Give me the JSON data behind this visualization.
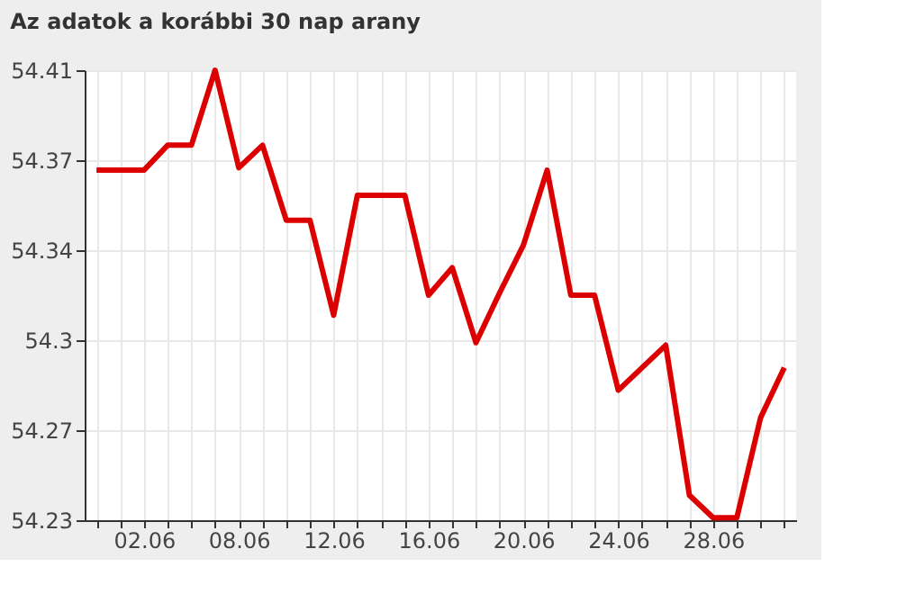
{
  "chart_data": {
    "type": "line",
    "title": "Az adatok a korábbi 30 nap arany",
    "categories": [
      null,
      null,
      "02.06",
      null,
      null,
      null,
      "08.06",
      null,
      null,
      null,
      "12.06",
      null,
      null,
      null,
      "16.06",
      null,
      null,
      null,
      "20.06",
      null,
      null,
      null,
      "24.06",
      null,
      null,
      null,
      "28.06",
      null,
      null,
      null
    ],
    "series": [
      {
        "color": "#dd0000",
        "values": [
          54.37,
          54.37,
          54.37,
          54.38,
          54.38,
          54.41,
          54.371,
          54.38,
          54.35,
          54.35,
          54.312,
          54.36,
          54.36,
          54.36,
          54.32,
          54.331,
          54.301,
          54.321,
          54.34,
          54.37,
          54.32,
          54.32,
          54.282,
          54.291,
          54.3,
          54.24,
          54.231,
          54.231,
          54.271,
          54.291
        ]
      }
    ],
    "ylim": [
      54.23,
      54.41
    ],
    "yticks": [
      54.23,
      {
        "value": 54.266,
        "label": "54.27"
      },
      {
        "value": 54.302,
        "label": "54.3"
      },
      {
        "value": 54.338,
        "label": "54.34"
      },
      {
        "value": 54.374,
        "label": "54.37"
      },
      54.41
    ],
    "grid": true,
    "marker": "none",
    "line_style": "solid"
  }
}
